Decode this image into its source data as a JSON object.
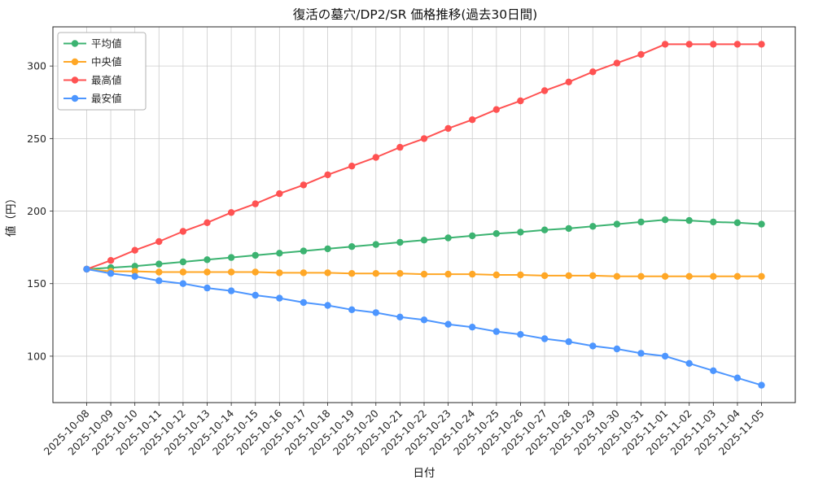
{
  "window": {
    "title": "復活の墓穴/DP2/SR 価格推移(過去30日間)"
  },
  "chart_data": {
    "type": "line",
    "title": "復活の墓穴/DP2/SR 価格推移(過去30日間)",
    "xlabel": "日付",
    "ylabel": "値（円）",
    "x": [
      "2025-10-08",
      "2025-10-09",
      "2025-10-10",
      "2025-10-11",
      "2025-10-12",
      "2025-10-13",
      "2025-10-14",
      "2025-10-15",
      "2025-10-16",
      "2025-10-17",
      "2025-10-18",
      "2025-10-19",
      "2025-10-20",
      "2025-10-21",
      "2025-10-22",
      "2025-10-23",
      "2025-10-24",
      "2025-10-25",
      "2025-10-26",
      "2025-10-27",
      "2025-10-28",
      "2025-10-29",
      "2025-10-30",
      "2025-10-31",
      "2025-11-01",
      "2025-11-02",
      "2025-11-03",
      "2025-11-04",
      "2025-11-05"
    ],
    "series": [
      {
        "key": "average",
        "name": "平均値",
        "color": "#3cb371",
        "values": [
          160,
          161,
          162,
          163.5,
          165,
          166.5,
          168,
          169.5,
          171,
          172.5,
          174,
          175.5,
          177,
          178.5,
          180,
          181.5,
          183,
          184.5,
          185.5,
          187,
          188,
          189.5,
          191,
          192.5,
          194,
          193.5,
          192.5,
          192,
          191
        ]
      },
      {
        "key": "median",
        "name": "中央値",
        "color": "#ffa726",
        "values": [
          160,
          158.5,
          158.5,
          158,
          158,
          158,
          158,
          158,
          157.5,
          157.5,
          157.5,
          157,
          157,
          157,
          156.5,
          156.5,
          156.5,
          156,
          156,
          155.5,
          155.5,
          155.5,
          155,
          155,
          155,
          155,
          155,
          155,
          155
        ]
      },
      {
        "key": "max",
        "name": "最高値",
        "color": "#ff5252",
        "values": [
          160,
          166,
          173,
          179,
          186,
          192,
          199,
          205,
          212,
          218,
          225,
          231,
          237,
          244,
          250,
          257,
          263,
          270,
          276,
          283,
          289,
          296,
          302,
          308,
          315,
          315,
          315,
          315,
          315
        ]
      },
      {
        "key": "min",
        "name": "最安値",
        "color": "#4d96ff",
        "values": [
          160,
          157,
          155,
          152,
          150,
          147,
          145,
          142,
          140,
          137,
          135,
          132,
          130,
          127,
          125,
          122,
          120,
          117,
          115,
          112,
          110,
          107,
          105,
          102,
          100,
          95,
          90,
          85,
          80
        ]
      }
    ],
    "ylim": [
      68,
      327
    ],
    "yticks": [
      100,
      150,
      200,
      250,
      300
    ],
    "grid": true,
    "legend_position": "upper left"
  }
}
